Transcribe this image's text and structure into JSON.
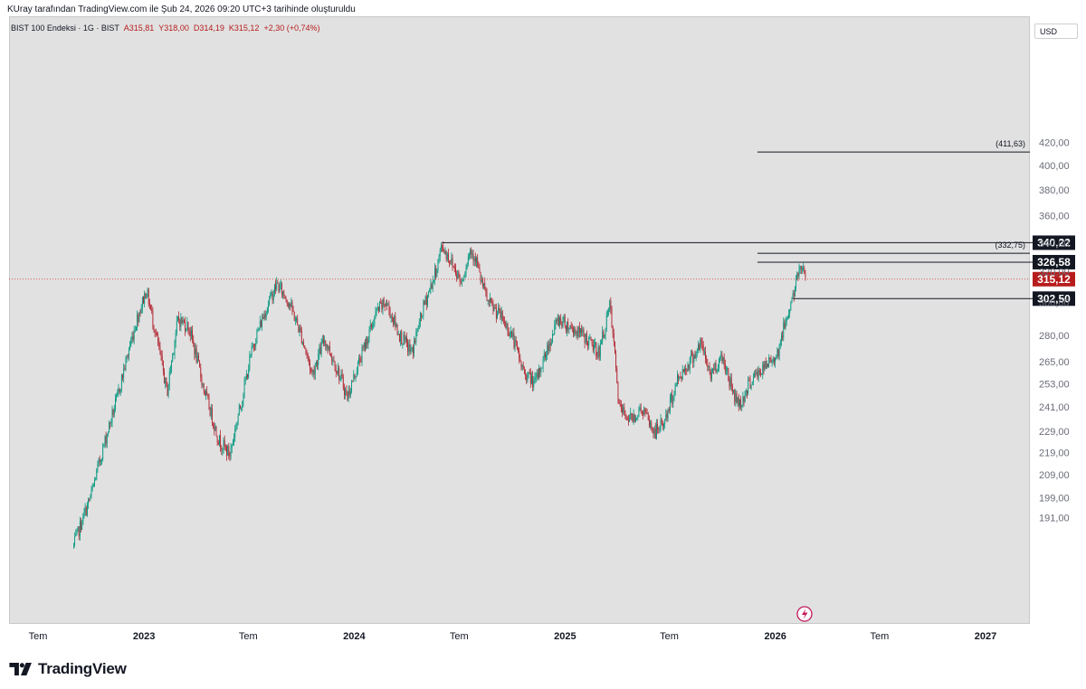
{
  "header": {
    "caption": "KUray tarafından TradingView.com ile Şub 24, 2026 09:20 UTC+3 tarihinde oluşturuldu"
  },
  "legend": {
    "symbol": "BIST 100 Endeksi · 1G · BIST",
    "open": "A315,81",
    "high": "Y318,00",
    "low": "D314,19",
    "close": "K315,12",
    "change": "+2,30 (+0,74%)"
  },
  "currency_label": "USD",
  "brand": {
    "name": "TradingView"
  },
  "colors": {
    "up": "#089981",
    "down": "#b22833",
    "price_line": "#d32f2f",
    "plot_bg": "#e1e1e1",
    "level_line": "#131722",
    "label_bg": "#131722",
    "last_label_bg": "#b71c1c"
  },
  "chart_data": {
    "type": "candlestick",
    "series_name": "BIST 100 Endeksi",
    "interval": "1G",
    "y_scale": "log",
    "y_ticks": [
      "420,00",
      "400,00",
      "380,00",
      "360,00",
      "340,00",
      "320,00",
      "300,00",
      "280,00",
      "265,00",
      "253,00",
      "241,00",
      "229,00",
      "219,00",
      "209,00",
      "199,00",
      "191,00"
    ],
    "x_ticks": [
      {
        "label": "Tem",
        "date": "2022-07-01",
        "bold": false
      },
      {
        "label": "2023",
        "date": "2023-01-01",
        "bold": true
      },
      {
        "label": "Tem",
        "date": "2023-07-01",
        "bold": false
      },
      {
        "label": "2024",
        "date": "2024-01-01",
        "bold": true
      },
      {
        "label": "Tem",
        "date": "2024-07-01",
        "bold": false
      },
      {
        "label": "2025",
        "date": "2025-01-01",
        "bold": true
      },
      {
        "label": "Tem",
        "date": "2025-07-01",
        "bold": false
      },
      {
        "label": "2026",
        "date": "2026-01-01",
        "bold": true
      },
      {
        "label": "Tem",
        "date": "2026-07-01",
        "bold": false
      },
      {
        "label": "2027",
        "date": "2027-01-01",
        "bold": true
      }
    ],
    "close_path": [
      [
        "2022-09-01",
        180
      ],
      [
        "2022-10-01",
        200
      ],
      [
        "2022-11-15",
        245
      ],
      [
        "2022-12-20",
        290
      ],
      [
        "2023-01-05",
        308
      ],
      [
        "2023-01-25",
        275
      ],
      [
        "2023-02-10",
        248
      ],
      [
        "2023-03-01",
        290
      ],
      [
        "2023-03-20",
        285
      ],
      [
        "2023-04-15",
        250
      ],
      [
        "2023-05-10",
        225
      ],
      [
        "2023-05-30",
        218
      ],
      [
        "2023-06-20",
        245
      ],
      [
        "2023-07-10",
        275
      ],
      [
        "2023-08-05",
        300
      ],
      [
        "2023-08-20",
        312
      ],
      [
        "2023-09-10",
        300
      ],
      [
        "2023-10-01",
        280
      ],
      [
        "2023-10-20",
        258
      ],
      [
        "2023-11-10",
        278
      ],
      [
        "2023-12-01",
        262
      ],
      [
        "2023-12-20",
        246
      ],
      [
        "2024-01-15",
        270
      ],
      [
        "2024-02-10",
        295
      ],
      [
        "2024-02-25",
        300
      ],
      [
        "2024-03-20",
        280
      ],
      [
        "2024-04-10",
        270
      ],
      [
        "2024-05-01",
        298
      ],
      [
        "2024-05-20",
        318
      ],
      [
        "2024-06-01",
        338
      ],
      [
        "2024-06-20",
        325
      ],
      [
        "2024-07-05",
        313
      ],
      [
        "2024-07-20",
        335
      ],
      [
        "2024-07-30",
        330
      ],
      [
        "2024-08-05",
        318
      ],
      [
        "2024-08-20",
        300
      ],
      [
        "2024-09-10",
        292
      ],
      [
        "2024-10-01",
        280
      ],
      [
        "2024-10-20",
        260
      ],
      [
        "2024-11-10",
        253
      ],
      [
        "2024-12-01",
        272
      ],
      [
        "2024-12-20",
        290
      ],
      [
        "2025-01-10",
        285
      ],
      [
        "2025-02-01",
        280
      ],
      [
        "2025-03-01",
        270
      ],
      [
        "2025-03-20",
        298
      ],
      [
        "2025-04-05",
        240
      ],
      [
        "2025-04-25",
        235
      ],
      [
        "2025-05-15",
        240
      ],
      [
        "2025-06-05",
        228
      ],
      [
        "2025-06-25",
        235
      ],
      [
        "2025-07-15",
        255
      ],
      [
        "2025-08-05",
        265
      ],
      [
        "2025-08-25",
        275
      ],
      [
        "2025-09-10",
        258
      ],
      [
        "2025-10-01",
        268
      ],
      [
        "2025-10-20",
        248
      ],
      [
        "2025-11-01",
        242
      ],
      [
        "2025-11-20",
        255
      ],
      [
        "2025-12-15",
        262
      ],
      [
        "2026-01-05",
        270
      ],
      [
        "2026-01-20",
        290
      ],
      [
        "2026-02-05",
        310
      ],
      [
        "2026-02-12",
        322
      ],
      [
        "2026-02-16",
        326
      ],
      [
        "2026-02-24",
        315.12
      ]
    ],
    "price_levels": [
      {
        "value": 340.22,
        "label": "340,22",
        "start": "2024-06-01"
      },
      {
        "value": 326.58,
        "label": "326,58",
        "start": "2025-12-01"
      },
      {
        "value": 302.5,
        "label": "302,50",
        "start": "2026-02-01"
      }
    ],
    "annotations": [
      {
        "value": 411.63,
        "label": "(411,63)",
        "start": "2025-12-01"
      },
      {
        "value": 332.75,
        "label": "(332,75)",
        "start": "2025-12-01"
      }
    ],
    "last_price": {
      "value": 315.12,
      "label": "315,12"
    }
  }
}
